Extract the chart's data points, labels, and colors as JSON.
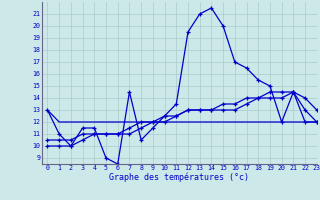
{
  "xlabel": "Graphe des températures (°c)",
  "xlim": [
    -0.5,
    23
  ],
  "ylim": [
    8.5,
    22
  ],
  "yticks": [
    9,
    10,
    11,
    12,
    13,
    14,
    15,
    16,
    17,
    18,
    19,
    20,
    21
  ],
  "xticks": [
    0,
    1,
    2,
    3,
    4,
    5,
    6,
    7,
    8,
    9,
    10,
    11,
    12,
    13,
    14,
    15,
    16,
    17,
    18,
    19,
    20,
    21,
    22,
    23
  ],
  "background_color": "#cce8e8",
  "grid_color": "#aacccc",
  "line_color": "#0000cc",
  "line1": [
    13,
    11,
    10,
    11.5,
    11.5,
    9,
    8.5,
    14.5,
    10.5,
    11.5,
    12.5,
    13.5,
    19.5,
    21,
    21.5,
    20,
    17,
    16.5,
    15.5,
    15,
    12,
    14.5,
    14,
    13
  ],
  "line2": [
    10.5,
    10.5,
    10.5,
    11,
    11,
    11,
    11,
    11.5,
    12,
    12,
    12.5,
    12.5,
    13,
    13,
    13,
    13,
    13,
    13.5,
    14,
    14,
    14,
    14.5,
    12,
    12
  ],
  "line3": [
    10,
    10,
    10,
    10.5,
    11,
    11,
    11,
    11,
    11.5,
    12,
    12,
    12.5,
    13,
    13,
    13,
    13.5,
    13.5,
    14,
    14,
    14.5,
    14.5,
    14.5,
    13,
    12
  ],
  "line4": [
    13,
    12,
    12,
    12,
    12,
    12,
    12,
    12,
    12,
    12,
    12,
    12,
    12,
    12,
    12,
    12,
    12,
    12,
    12,
    12,
    12,
    12,
    12,
    12
  ]
}
